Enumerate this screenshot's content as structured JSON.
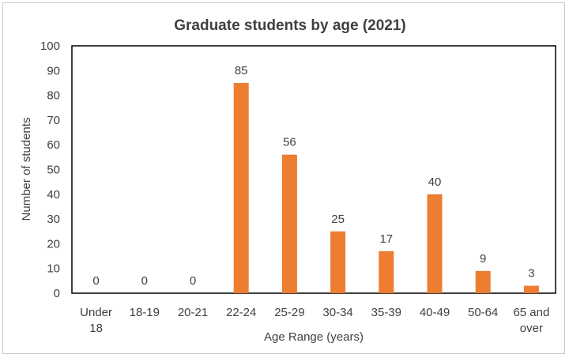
{
  "chart_data": {
    "type": "bar",
    "title": "Graduate students by age (2021)",
    "xlabel": "Age Range (years)",
    "ylabel": "Number of students",
    "categories": [
      "Under 18",
      "18-19",
      "20-21",
      "22-24",
      "25-29",
      "30-34",
      "35-39",
      "40-49",
      "50-64",
      "65 and over"
    ],
    "category_lines": [
      [
        "Under",
        "18"
      ],
      [
        "18-19"
      ],
      [
        "20-21"
      ],
      [
        "22-24"
      ],
      [
        "25-29"
      ],
      [
        "30-34"
      ],
      [
        "35-39"
      ],
      [
        "40-49"
      ],
      [
        "50-64"
      ],
      [
        "65 and",
        "over"
      ]
    ],
    "values": [
      0,
      0,
      0,
      85,
      56,
      25,
      17,
      40,
      9,
      3
    ],
    "ylim": [
      0,
      100
    ],
    "yticks": [
      0,
      10,
      20,
      30,
      40,
      50,
      60,
      70,
      80,
      90,
      100
    ],
    "data_labels": true,
    "grid": false,
    "colors": {
      "bar": "#ED7D31",
      "text": "#404040",
      "plot_border": "#000000"
    }
  }
}
